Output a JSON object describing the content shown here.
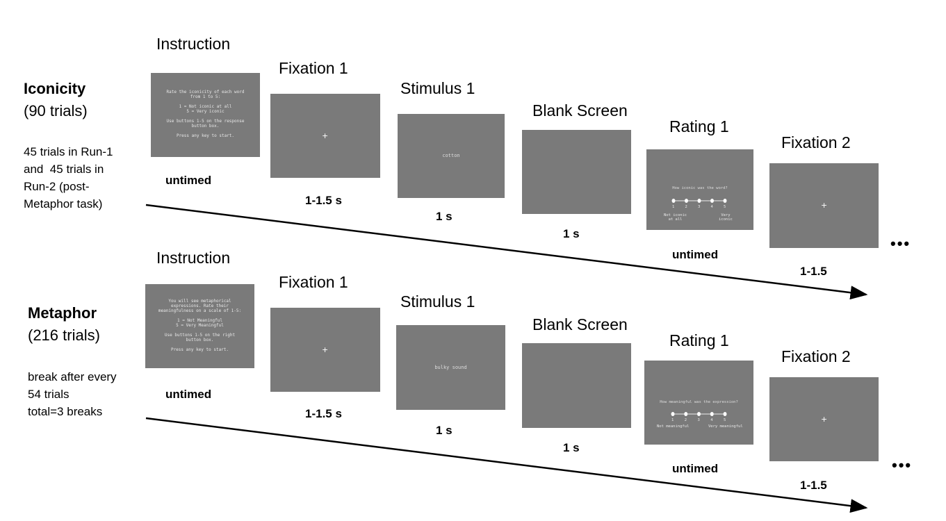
{
  "iconicity": {
    "name": "Iconicity",
    "count": "(90 trials)",
    "note": "45 trials in Run-1\nand  45 trials in\nRun-2 (post-\nMetaphor task)",
    "steps": {
      "instruction": {
        "title": "Instruction",
        "duration": "untimed",
        "screen_text": "Rate the iconicity of each word\nfrom 1 to 5:\n\n1 = Not iconic at all\n5 = Very iconic\n\nUse buttons 1-5 on the response\nbutton box.\n\nPress any key to start."
      },
      "fixation1": {
        "title": "Fixation 1",
        "duration": "1-1.5 s",
        "symbol": "+"
      },
      "stimulus1": {
        "title": "Stimulus 1",
        "duration": "1 s",
        "word": "cotton"
      },
      "blank": {
        "title": "Blank Screen",
        "duration": "1 s"
      },
      "rating1": {
        "title": "Rating 1",
        "duration": "untimed",
        "question": "How iconic was the word?",
        "scale": [
          "1",
          "2",
          "3",
          "4",
          "5"
        ],
        "low_label": "Not iconic\nat all",
        "high_label": "Very\niconic"
      },
      "fixation2": {
        "title": "Fixation 2",
        "duration": "1-1.5",
        "symbol": "+"
      }
    },
    "ellipsis": "•••"
  },
  "metaphor": {
    "name": "Metaphor",
    "count": "(216 trials)",
    "note": "break after every\n54 trials\ntotal=3 breaks",
    "steps": {
      "instruction": {
        "title": "Instruction",
        "duration": "untimed",
        "screen_text": "You will see metaphorical\nexpressions. Rate their\nmeaningfulness on a scale of 1-5:\n\n1 = Not Meaningful\n5 = Very Meaningful\n\nUse buttons 1-5 on the right\nbutton box.\n\nPress any key to start."
      },
      "fixation1": {
        "title": "Fixation 1",
        "duration": "1-1.5 s",
        "symbol": "+"
      },
      "stimulus1": {
        "title": "Stimulus 1",
        "duration": "1 s",
        "word": "bulky sound"
      },
      "blank": {
        "title": "Blank Screen",
        "duration": "1 s"
      },
      "rating1": {
        "title": "Rating 1",
        "duration": "untimed",
        "question": "How meaningful was the expression?",
        "scale": [
          "1",
          "2",
          "3",
          "4",
          "5"
        ],
        "low_label": "Not meaningful",
        "high_label": "Very meaningful"
      },
      "fixation2": {
        "title": "Fixation 2",
        "duration": "1-1.5",
        "symbol": "+"
      }
    },
    "ellipsis": "•••"
  },
  "colors": {
    "screen": "#7a7a7a",
    "arrow": "#000000"
  }
}
